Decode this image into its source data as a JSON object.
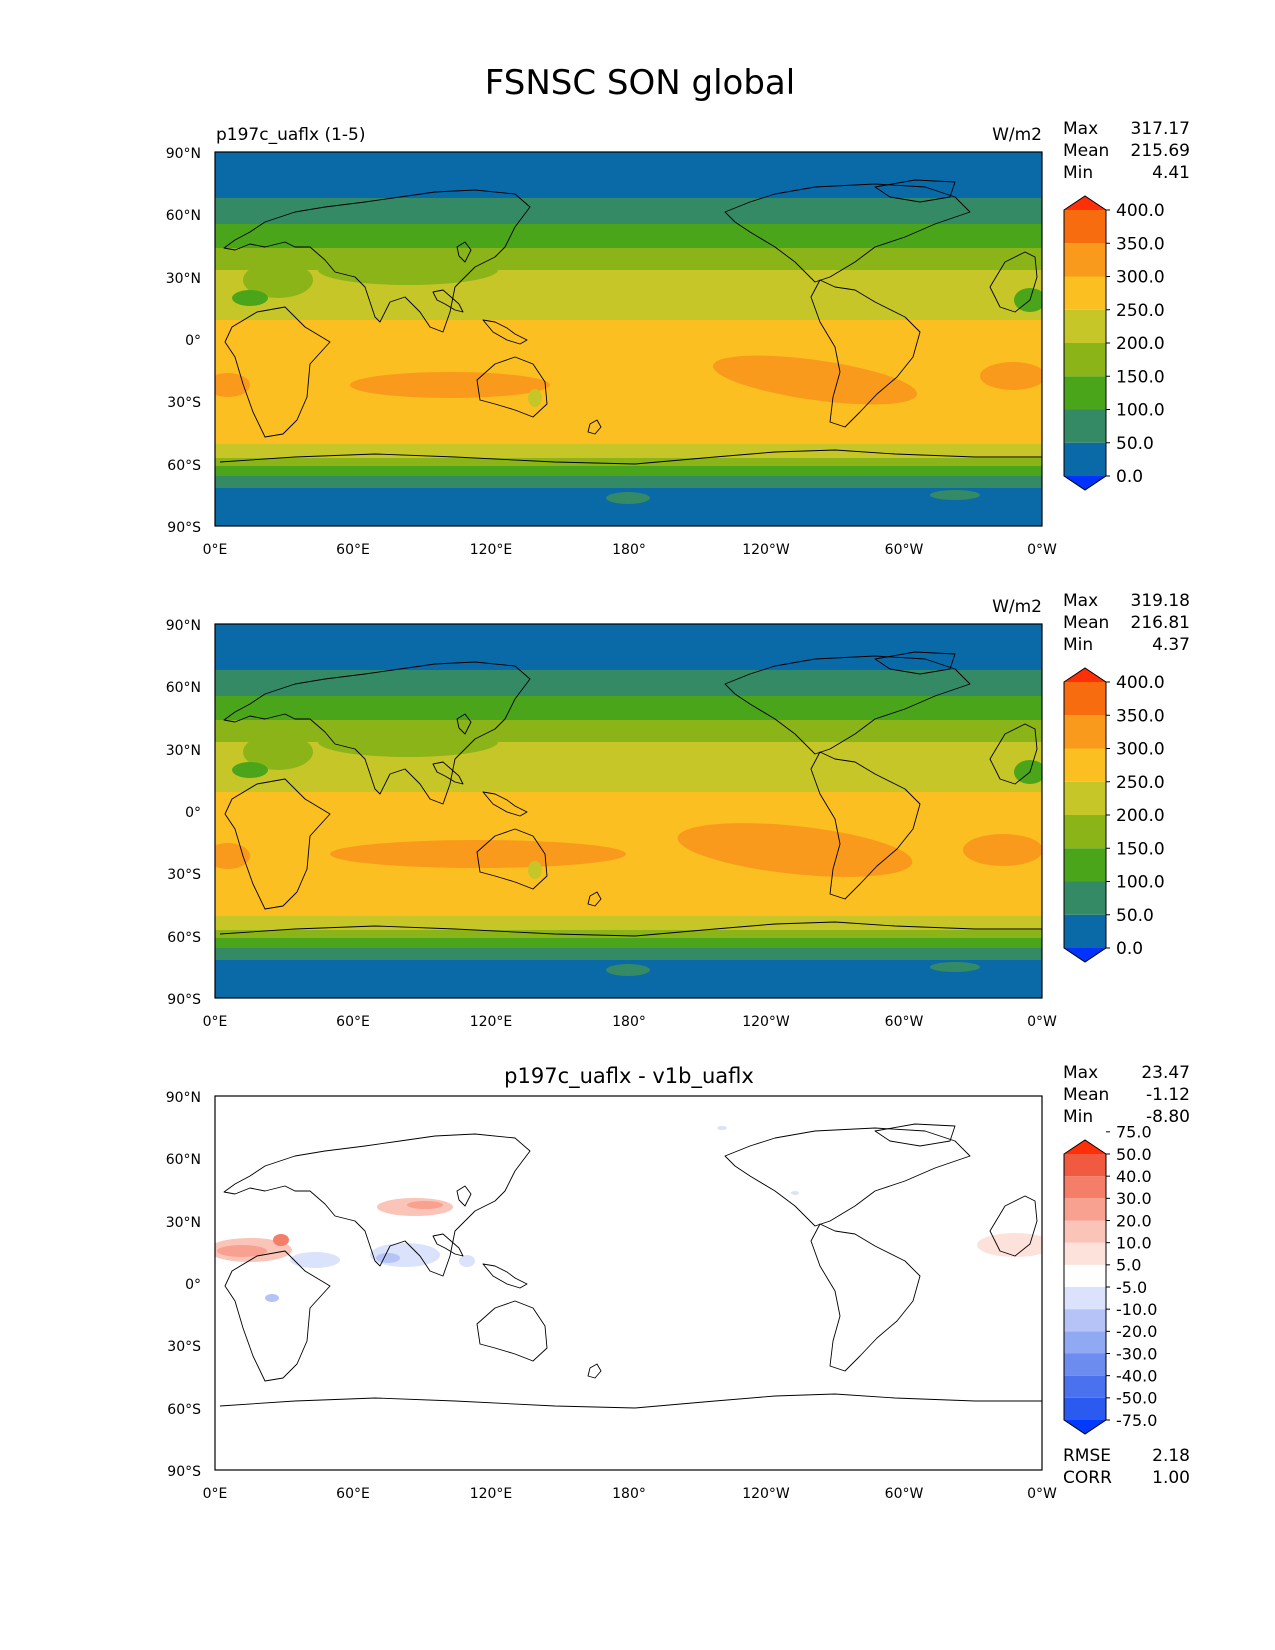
{
  "figure_title": "FSNSC SON global",
  "panels": [
    {
      "id": "test",
      "left_title": "p197c_uaflx (1-5)",
      "center_title": "",
      "units": "W/m2",
      "stats": {
        "max_label": "Max",
        "max": "317.17",
        "mean_label": "Mean",
        "mean": "215.69",
        "min_label": "Min",
        "min": "4.41"
      },
      "colorbar": [
        "0.0",
        "50.0",
        "100.0",
        "150.0",
        "200.0",
        "250.0",
        "300.0",
        "350.0",
        "400.0"
      ]
    },
    {
      "id": "reference",
      "left_title": "",
      "center_title": "",
      "units": "W/m2",
      "stats": {
        "max_label": "Max",
        "max": "319.18",
        "mean_label": "Mean",
        "mean": "216.81",
        "min_label": "Min",
        "min": "4.37"
      },
      "colorbar": [
        "0.0",
        "50.0",
        "100.0",
        "150.0",
        "200.0",
        "250.0",
        "300.0",
        "350.0",
        "400.0"
      ]
    },
    {
      "id": "difference",
      "left_title": "",
      "center_title": "p197c_uaflx - v1b_uaflx",
      "units": "",
      "stats": {
        "max_label": "Max",
        "max": "23.47",
        "mean_label": "Mean",
        "mean": "-1.12",
        "min_label": "Min",
        "min": "-8.80"
      },
      "colorbar": [
        "-75.0",
        "-50.0",
        "-40.0",
        "-30.0",
        "-20.0",
        "-10.0",
        "-5.0",
        "5.0",
        "10.0",
        "20.0",
        "30.0",
        "40.0",
        "50.0",
        "75.0"
      ],
      "metrics": {
        "rmse_label": "RMSE",
        "rmse": "2.18",
        "corr_label": "CORR",
        "corr": "1.00"
      }
    }
  ],
  "lat_ticks": [
    "90°N",
    "60°N",
    "30°N",
    "0°",
    "30°S",
    "60°S",
    "90°S"
  ],
  "lon_ticks": [
    "0°E",
    "60°E",
    "120°E",
    "180°",
    "120°W",
    "60°W",
    "0°W"
  ],
  "colors": {
    "abs_levels": [
      "#0033ff",
      "#0a6aa8",
      "#348a64",
      "#4ba51a",
      "#8bb418",
      "#c6c628",
      "#fbbf22",
      "#f99a1c",
      "#f86c10",
      "#ff3008"
    ],
    "diff_levels": [
      "#0039ff",
      "#2a5af0",
      "#4a72ee",
      "#6d8cf0",
      "#91a8f3",
      "#b5c3f6",
      "#dbe2fb",
      "#ffffff",
      "#fde2dc",
      "#fbc4b8",
      "#f8a190",
      "#f47e68",
      "#f05a40",
      "#ff3008"
    ],
    "land_outline": "#000000"
  }
}
